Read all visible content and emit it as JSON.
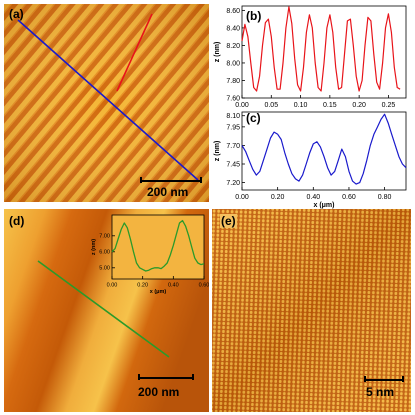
{
  "panels": {
    "a": {
      "label": "(a)",
      "scalebar": "200 nm"
    },
    "b": {
      "label": "(b)"
    },
    "c": {
      "label": "(c)"
    },
    "d": {
      "label": "(d)",
      "scalebar": "200 nm"
    },
    "e": {
      "label": "(e)",
      "scalebar": "5 nm"
    }
  },
  "colors": {
    "afm_orange": "#e07a10",
    "afm_light": "#f7c040",
    "afm_dark": "#b8560a",
    "red_line": "#e8141a",
    "blue_line": "#1a1acc",
    "green_line": "#2a9a2a"
  },
  "chart_data": [
    {
      "type": "line",
      "panel": "(b)",
      "ylabel": "z (nm)",
      "xlabel": "",
      "xlim": [
        0,
        0.28
      ],
      "ylim": [
        7.6,
        8.65
      ],
      "xticks": [
        "0.00",
        "0.05",
        "0.10",
        "0.15",
        "0.20",
        "0.25"
      ],
      "yticks": [
        "7.60",
        "7.80",
        "8.00",
        "8.20",
        "8.40",
        "8.60"
      ],
      "series": [
        {
          "color": "#e8141a",
          "x": [
            0.0,
            0.005,
            0.01,
            0.015,
            0.02,
            0.025,
            0.03,
            0.035,
            0.04,
            0.045,
            0.05,
            0.055,
            0.06,
            0.065,
            0.07,
            0.075,
            0.08,
            0.085,
            0.09,
            0.095,
            0.1,
            0.105,
            0.11,
            0.115,
            0.12,
            0.125,
            0.13,
            0.135,
            0.14,
            0.145,
            0.15,
            0.155,
            0.16,
            0.165,
            0.17,
            0.175,
            0.18,
            0.185,
            0.19,
            0.195,
            0.2,
            0.205,
            0.21,
            0.215,
            0.22,
            0.225,
            0.23,
            0.235,
            0.24,
            0.245,
            0.25,
            0.255,
            0.26,
            0.265,
            0.27
          ],
          "y": [
            8.25,
            8.44,
            8.3,
            8.0,
            7.72,
            7.68,
            7.85,
            8.2,
            8.46,
            8.5,
            8.3,
            7.95,
            7.7,
            7.7,
            8.0,
            8.4,
            8.64,
            8.45,
            8.05,
            7.75,
            7.68,
            7.95,
            8.35,
            8.55,
            8.4,
            8.0,
            7.72,
            7.68,
            8.0,
            8.4,
            8.55,
            8.35,
            7.95,
            7.7,
            7.72,
            8.1,
            8.48,
            8.5,
            8.2,
            7.85,
            7.68,
            7.8,
            8.2,
            8.52,
            8.48,
            8.1,
            7.78,
            7.7,
            8.0,
            8.4,
            8.56,
            8.35,
            7.95,
            7.72,
            7.7
          ]
        }
      ]
    },
    {
      "type": "line",
      "panel": "(c)",
      "ylabel": "z (nm)",
      "xlabel": "x (μm)",
      "xlim": [
        0,
        0.92
      ],
      "ylim": [
        7.1,
        8.15
      ],
      "xticks": [
        "0.00",
        "0.20",
        "0.40",
        "0.60",
        "0.80"
      ],
      "yticks": [
        "7.20",
        "7.45",
        "7.70",
        "7.95",
        "8.10"
      ],
      "series": [
        {
          "color": "#1a1acc",
          "x": [
            0.0,
            0.02,
            0.04,
            0.06,
            0.08,
            0.1,
            0.12,
            0.14,
            0.16,
            0.18,
            0.2,
            0.22,
            0.24,
            0.26,
            0.28,
            0.3,
            0.32,
            0.34,
            0.36,
            0.38,
            0.4,
            0.42,
            0.44,
            0.46,
            0.48,
            0.5,
            0.52,
            0.54,
            0.56,
            0.58,
            0.6,
            0.62,
            0.64,
            0.66,
            0.68,
            0.7,
            0.72,
            0.74,
            0.76,
            0.78,
            0.8,
            0.82,
            0.84,
            0.86,
            0.88,
            0.9,
            0.92
          ],
          "y": [
            7.7,
            7.62,
            7.5,
            7.38,
            7.3,
            7.35,
            7.5,
            7.65,
            7.8,
            7.88,
            7.85,
            7.78,
            7.6,
            7.45,
            7.32,
            7.25,
            7.22,
            7.3,
            7.45,
            7.6,
            7.72,
            7.75,
            7.68,
            7.55,
            7.4,
            7.3,
            7.35,
            7.5,
            7.65,
            7.55,
            7.35,
            7.22,
            7.18,
            7.2,
            7.32,
            7.5,
            7.7,
            7.85,
            7.95,
            8.05,
            8.12,
            8.0,
            7.85,
            7.7,
            7.55,
            7.45,
            7.4
          ]
        }
      ]
    },
    {
      "type": "line",
      "panel": "(d) inset",
      "ylabel": "z (nm)",
      "xlabel": "x (μm)",
      "xlim": [
        0,
        0.6
      ],
      "ylim": [
        4.3,
        8.3
      ],
      "xticks": [
        "0.00",
        "0.20",
        "0.40",
        "0.60"
      ],
      "yticks": [
        "5.00",
        "6.00",
        "7.00"
      ],
      "series": [
        {
          "color": "#2a9a2a",
          "x": [
            0.0,
            0.02,
            0.04,
            0.06,
            0.08,
            0.1,
            0.12,
            0.14,
            0.16,
            0.18,
            0.2,
            0.22,
            0.24,
            0.26,
            0.28,
            0.3,
            0.32,
            0.34,
            0.36,
            0.38,
            0.4,
            0.42,
            0.44,
            0.46,
            0.48,
            0.5,
            0.52,
            0.54,
            0.56,
            0.58,
            0.6
          ],
          "y": [
            6.0,
            6.2,
            6.8,
            7.4,
            7.8,
            7.5,
            6.8,
            6.0,
            5.3,
            5.0,
            4.9,
            4.8,
            4.85,
            4.95,
            5.0,
            5.0,
            4.95,
            5.1,
            5.3,
            5.8,
            6.4,
            7.1,
            7.8,
            7.95,
            7.6,
            7.0,
            6.3,
            5.6,
            5.3,
            5.2,
            5.25
          ]
        }
      ]
    }
  ]
}
